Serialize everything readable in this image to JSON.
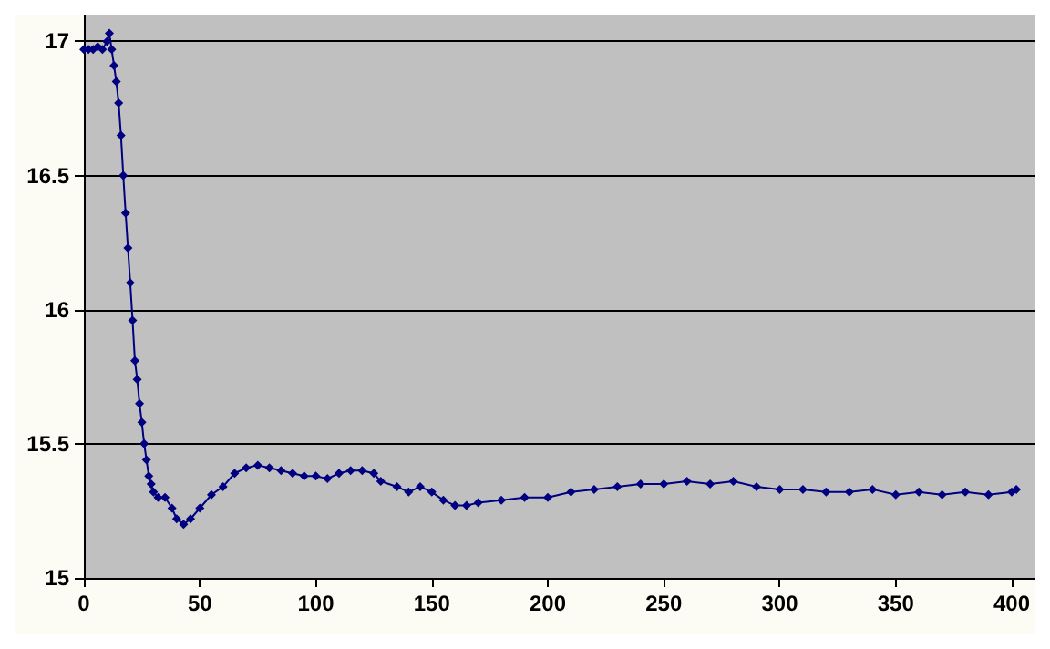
{
  "chart_data": {
    "type": "line",
    "x": [
      0,
      2,
      4,
      6,
      8,
      10,
      11,
      12,
      13,
      14,
      15,
      16,
      17,
      18,
      19,
      20,
      21,
      22,
      23,
      24,
      25,
      26,
      27,
      28,
      29,
      30,
      32,
      35,
      38,
      40,
      43,
      46,
      50,
      55,
      60,
      65,
      70,
      75,
      80,
      85,
      90,
      95,
      100,
      105,
      110,
      115,
      120,
      125,
      128,
      135,
      140,
      145,
      150,
      155,
      160,
      165,
      170,
      180,
      190,
      200,
      210,
      220,
      230,
      240,
      250,
      260,
      270,
      280,
      290,
      300,
      310,
      320,
      330,
      340,
      350,
      360,
      370,
      380,
      390,
      400,
      402
    ],
    "series": [
      {
        "color": "#000080",
        "values": [
          16.97,
          16.97,
          16.97,
          16.98,
          16.97,
          17.0,
          17.03,
          16.97,
          16.91,
          16.85,
          16.77,
          16.65,
          16.5,
          16.36,
          16.23,
          16.1,
          15.96,
          15.81,
          15.74,
          15.65,
          15.58,
          15.5,
          15.44,
          15.38,
          15.35,
          15.32,
          15.3,
          15.3,
          15.26,
          15.22,
          15.2,
          15.22,
          15.26,
          15.31,
          15.34,
          15.39,
          15.41,
          15.42,
          15.41,
          15.4,
          15.39,
          15.38,
          15.38,
          15.37,
          15.39,
          15.4,
          15.4,
          15.39,
          15.36,
          15.34,
          15.32,
          15.34,
          15.32,
          15.29,
          15.27,
          15.27,
          15.28,
          15.29,
          15.3,
          15.3,
          15.32,
          15.33,
          15.34,
          15.35,
          15.35,
          15.36,
          15.35,
          15.36,
          15.34,
          15.33,
          15.33,
          15.32,
          15.32,
          15.33,
          15.31,
          15.32,
          15.31,
          15.32,
          15.31,
          15.32,
          15.33
        ]
      }
    ],
    "xlim": [
      0,
      410
    ],
    "xticks": [
      0,
      50,
      100,
      150,
      200,
      250,
      300,
      350,
      400
    ],
    "ylim": [
      15,
      17.1
    ],
    "yticks": [
      15,
      15.5,
      16,
      16.5,
      17
    ],
    "grid": "y",
    "marker": "diamond",
    "line_style": "solid"
  }
}
